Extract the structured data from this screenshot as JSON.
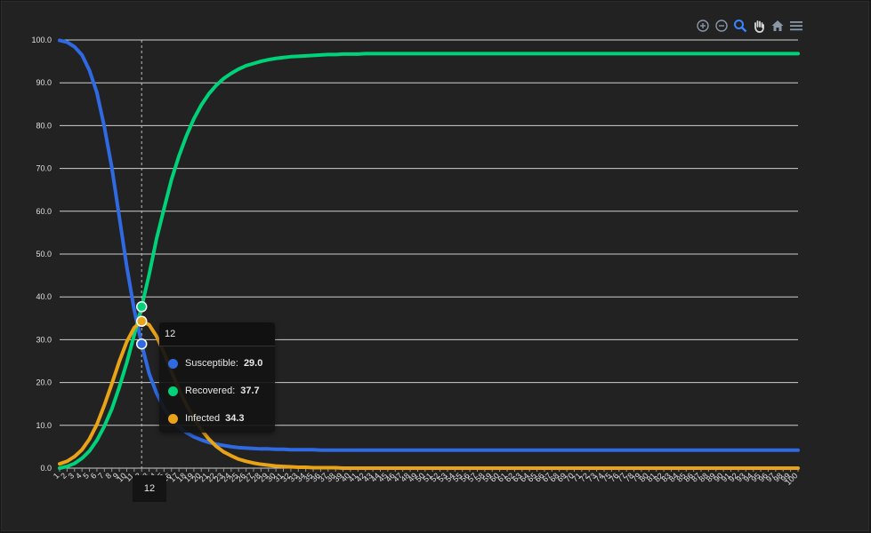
{
  "colors": {
    "susceptible": "#2f6ae3",
    "recovered": "#00d27a",
    "infected": "#e8a317",
    "grid": "#cfcfcf",
    "axis_text": "#e0e0e0",
    "toolbar_icon": "#8a97a8",
    "toolbar_active": "#3a84ff"
  },
  "toolbar": {
    "icons": [
      "zoom-in-icon",
      "zoom-out-icon",
      "selection-zoom-icon",
      "pan-icon",
      "reset-home-icon",
      "menu-icon"
    ]
  },
  "tooltip": {
    "title": "12",
    "rows": [
      {
        "name": "Susceptible:",
        "value": "29.0"
      },
      {
        "name": "Recovered:",
        "value": "37.7"
      },
      {
        "name": "Infected",
        "value": "34.3"
      }
    ]
  },
  "xcrosshair_label": "12",
  "chart_data": {
    "type": "line",
    "title": "",
    "xlabel": "",
    "ylabel": "",
    "x": [
      1,
      2,
      3,
      4,
      5,
      6,
      7,
      8,
      9,
      10,
      11,
      12,
      13,
      14,
      15,
      16,
      17,
      18,
      19,
      20,
      21,
      22,
      23,
      24,
      25,
      26,
      27,
      28,
      29,
      30,
      31,
      32,
      33,
      34,
      35,
      36,
      37,
      38,
      39,
      40,
      41,
      42,
      43,
      44,
      45,
      46,
      47,
      48,
      49,
      50,
      51,
      52,
      53,
      54,
      55,
      56,
      57,
      58,
      59,
      60,
      61,
      62,
      63,
      64,
      65,
      66,
      67,
      68,
      69,
      70,
      71,
      72,
      73,
      74,
      75,
      76,
      77,
      78,
      79,
      80,
      81,
      82,
      83,
      84,
      85,
      86,
      87,
      88,
      89,
      90,
      91,
      92,
      93,
      94,
      95,
      96,
      97,
      98,
      99,
      100
    ],
    "ylim": [
      0,
      100
    ],
    "yticks": [
      "0.0",
      "10.0",
      "20.0",
      "30.0",
      "40.0",
      "50.0",
      "60.0",
      "70.0",
      "80.0",
      "90.0",
      "100.0"
    ],
    "grid": true,
    "legend": "none",
    "hover_x": 12,
    "series": [
      {
        "name": "Susceptible",
        "values": [
          99.9,
          99.5,
          98.4,
          96.5,
          92.9,
          87.7,
          79.7,
          70.2,
          58.7,
          47.1,
          37.0,
          29.0,
          22.1,
          17.5,
          14.0,
          11.5,
          9.6,
          8.3,
          7.3,
          6.6,
          6.0,
          5.6,
          5.3,
          5.0,
          4.8,
          4.7,
          4.6,
          4.5,
          4.5,
          4.4,
          4.4,
          4.3,
          4.3,
          4.3,
          4.3,
          4.2,
          4.2,
          4.2,
          4.2,
          4.2,
          4.2,
          4.2,
          4.2,
          4.2,
          4.2,
          4.2,
          4.2,
          4.2,
          4.2,
          4.2,
          4.2,
          4.2,
          4.2,
          4.2,
          4.2,
          4.2,
          4.2,
          4.2,
          4.2,
          4.2,
          4.2,
          4.2,
          4.2,
          4.2,
          4.2,
          4.2,
          4.2,
          4.2,
          4.2,
          4.2,
          4.2,
          4.2,
          4.2,
          4.2,
          4.2,
          4.2,
          4.2,
          4.2,
          4.2,
          4.2,
          4.2,
          4.2,
          4.2,
          4.2,
          4.2,
          4.2,
          4.2,
          4.2,
          4.2,
          4.2,
          4.2,
          4.2,
          4.2,
          4.2,
          4.2,
          4.2,
          4.2,
          4.2,
          4.2,
          4.2
        ]
      },
      {
        "name": "Recovered",
        "values": [
          0.0,
          0.4,
          1.1,
          2.3,
          4.0,
          6.5,
          9.8,
          13.8,
          18.9,
          24.6,
          31.1,
          37.7,
          45.2,
          53.6,
          60.6,
          67.4,
          72.9,
          77.6,
          81.6,
          84.8,
          87.4,
          89.4,
          91.0,
          92.2,
          93.2,
          94.0,
          94.5,
          95.0,
          95.4,
          95.7,
          95.9,
          96.1,
          96.2,
          96.3,
          96.4,
          96.5,
          96.6,
          96.6,
          96.7,
          96.7,
          96.7,
          96.8,
          96.8,
          96.8,
          96.8,
          96.8,
          96.8,
          96.8,
          96.8,
          96.8,
          96.8,
          96.8,
          96.8,
          96.8,
          96.8,
          96.8,
          96.8,
          96.8,
          96.8,
          96.8,
          96.8,
          96.8,
          96.8,
          96.8,
          96.8,
          96.8,
          96.8,
          96.8,
          96.8,
          96.8,
          96.8,
          96.8,
          96.8,
          96.8,
          96.8,
          96.8,
          96.8,
          96.8,
          96.8,
          96.8,
          96.8,
          96.8,
          96.8,
          96.8,
          96.8,
          96.8,
          96.8,
          96.8,
          96.8,
          96.8,
          96.8,
          96.8,
          96.8,
          96.8,
          96.8,
          96.8,
          96.8,
          96.8,
          96.8,
          96.8
        ]
      },
      {
        "name": "Infected",
        "values": [
          1.0,
          1.6,
          2.7,
          4.3,
          6.8,
          10.2,
          14.7,
          19.7,
          24.9,
          29.5,
          32.8,
          34.3,
          33.5,
          30.8,
          26.9,
          22.5,
          18.4,
          14.8,
          11.6,
          9.0,
          6.8,
          5.1,
          3.8,
          2.9,
          2.1,
          1.6,
          1.2,
          0.9,
          0.7,
          0.5,
          0.4,
          0.3,
          0.2,
          0.2,
          0.1,
          0.1,
          0.1,
          0.1,
          0.0,
          0.0,
          0.0,
          0.0,
          0.0,
          0.0,
          0.0,
          0.0,
          0.0,
          0.0,
          0.0,
          0.0,
          0.0,
          0.0,
          0.0,
          0.0,
          0.0,
          0.0,
          0.0,
          0.0,
          0.0,
          0.0,
          0.0,
          0.0,
          0.0,
          0.0,
          0.0,
          0.0,
          0.0,
          0.0,
          0.0,
          0.0,
          0.0,
          0.0,
          0.0,
          0.0,
          0.0,
          0.0,
          0.0,
          0.0,
          0.0,
          0.0,
          0.0,
          0.0,
          0.0,
          0.0,
          0.0,
          0.0,
          0.0,
          0.0,
          0.0,
          0.0,
          0.0,
          0.0,
          0.0,
          0.0,
          0.0,
          0.0,
          0.0,
          0.0,
          0.0,
          0.0
        ]
      }
    ]
  }
}
